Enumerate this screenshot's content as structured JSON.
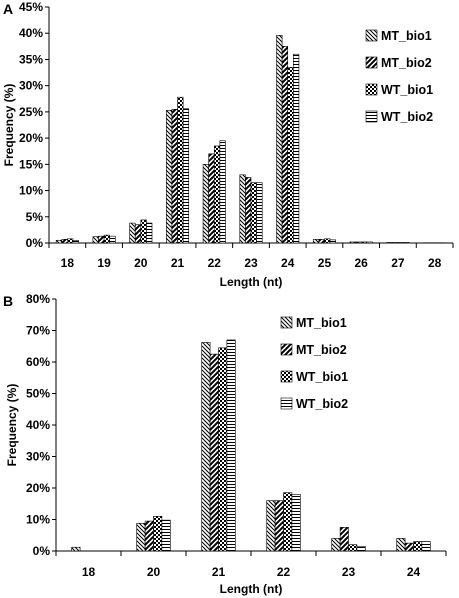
{
  "chart_data": [
    {
      "type": "bar",
      "panel_label": "A",
      "xlabel": "Length (nt)",
      "ylabel": "Frequency (%)",
      "ylim": [
        0,
        45
      ],
      "yticks": [
        "0%",
        "5%",
        "10%",
        "15%",
        "20%",
        "25%",
        "30%",
        "35%",
        "40%",
        "45%"
      ],
      "categories": [
        "18",
        "19",
        "20",
        "21",
        "22",
        "23",
        "24",
        "25",
        "26",
        "27",
        "28"
      ],
      "legend_position": "top-right",
      "series": [
        {
          "name": "MT_bio1",
          "pattern": "diag-left",
          "values": [
            0.5,
            1.2,
            3.8,
            25.3,
            15.0,
            13.0,
            39.6,
            0.7,
            0.2,
            0.1,
            0.05
          ]
        },
        {
          "name": "MT_bio2",
          "pattern": "diag-right-bold",
          "values": [
            0.7,
            1.3,
            3.5,
            25.5,
            17.0,
            12.5,
            37.5,
            0.7,
            0.2,
            0.1,
            0.05
          ]
        },
        {
          "name": "WT_bio1",
          "pattern": "checker",
          "values": [
            0.8,
            1.5,
            4.4,
            27.8,
            18.5,
            11.5,
            33.5,
            0.8,
            0.2,
            0.1,
            0.05
          ]
        },
        {
          "name": "WT_bio2",
          "pattern": "horizontal",
          "values": [
            0.5,
            1.3,
            3.8,
            25.6,
            19.5,
            11.5,
            36.0,
            0.6,
            0.2,
            0.1,
            0.05
          ]
        }
      ]
    },
    {
      "type": "bar",
      "panel_label": "B",
      "xlabel": "Length (nt)",
      "ylabel": "Frequency (%)",
      "ylim": [
        0,
        80
      ],
      "yticks": [
        "0%",
        "10%",
        "20%",
        "30%",
        "40%",
        "50%",
        "60%",
        "70%",
        "80%"
      ],
      "categories": [
        "18",
        "20",
        "21",
        "22",
        "23",
        "24"
      ],
      "legend_position": "top-right",
      "series": [
        {
          "name": "MT_bio1",
          "pattern": "diag-left",
          "values": [
            1.2,
            8.8,
            66.2,
            16.0,
            4.0,
            4.0
          ]
        },
        {
          "name": "MT_bio2",
          "pattern": "diag-right-bold",
          "values": [
            0.0,
            9.5,
            62.5,
            16.0,
            7.5,
            2.5
          ]
        },
        {
          "name": "WT_bio1",
          "pattern": "checker",
          "values": [
            0.0,
            11.0,
            64.5,
            18.5,
            2.0,
            3.0
          ]
        },
        {
          "name": "WT_bio2",
          "pattern": "horizontal",
          "values": [
            0.0,
            9.8,
            67.0,
            18.0,
            1.5,
            3.0
          ]
        }
      ]
    }
  ]
}
